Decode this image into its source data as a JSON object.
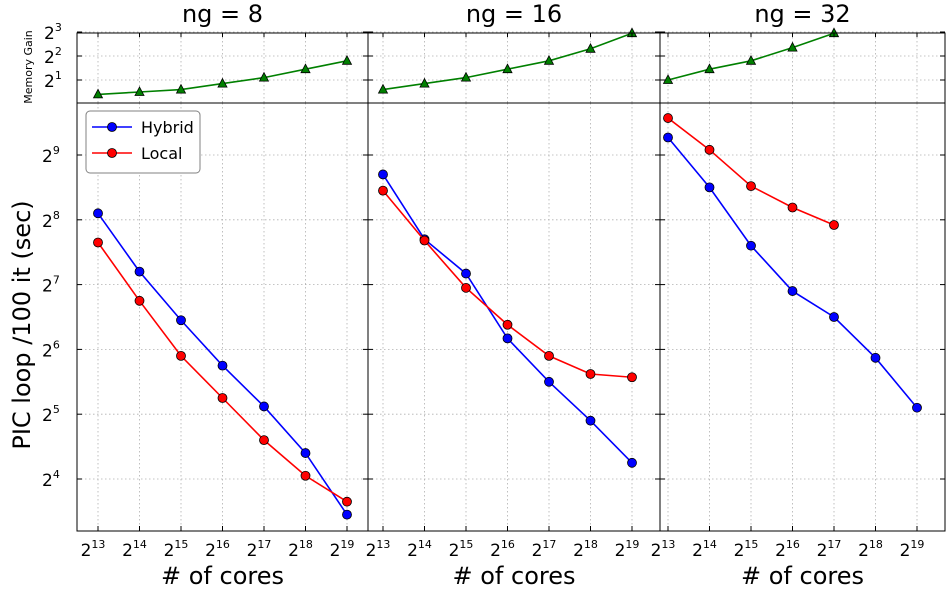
{
  "chart_data": {
    "type": "line",
    "top_ylabel": "Memory Gain",
    "bottom_ylabel": "PIC loop /100 it (sec)",
    "xlabel": "# of cores",
    "x": [
      13,
      14,
      15,
      16,
      17,
      18,
      19
    ],
    "x_tick_labels": [
      "13",
      "14",
      "15",
      "16",
      "17",
      "18",
      "19"
    ],
    "x_tick_base": "2",
    "top_y_ticks": [
      "1",
      "2",
      "3"
    ],
    "bottom_y_ticks": [
      "4",
      "5",
      "6",
      "7",
      "8",
      "9"
    ],
    "log_scale": "base 2 (values given as exponents)",
    "grid": true,
    "legend_position": "upper-left of first panel",
    "legend": [
      {
        "name": "Hybrid",
        "color": "#0000ff"
      },
      {
        "name": "Local",
        "color": "#ff0000"
      }
    ],
    "memory_gain_color": "#008000",
    "panels": [
      {
        "title": "ng = 8",
        "memory_gain": [
          0.4,
          0.5,
          0.6,
          0.85,
          1.1,
          1.45,
          1.8
        ],
        "series": [
          {
            "name": "Hybrid",
            "values": [
              8.1,
              7.2,
              6.45,
              5.75,
              5.12,
              4.4,
              3.45
            ]
          },
          {
            "name": "Local",
            "values": [
              7.65,
              6.75,
              5.9,
              5.25,
              4.6,
              4.05,
              3.65
            ]
          }
        ]
      },
      {
        "title": "ng = 16",
        "memory_gain": [
          0.6,
          0.85,
          1.1,
          1.45,
          1.8,
          2.3,
          2.95
        ],
        "series": [
          {
            "name": "Hybrid",
            "values": [
              8.7,
              7.7,
              7.17,
              6.17,
              5.5,
              4.9,
              4.25
            ]
          },
          {
            "name": "Local",
            "values": [
              8.45,
              7.68,
              6.95,
              6.38,
              5.9,
              5.62,
              5.57
            ]
          }
        ]
      },
      {
        "title": "ng = 32",
        "memory_gain": [
          1.0,
          1.45,
          1.8,
          2.35,
          2.95
        ],
        "series": [
          {
            "name": "Hybrid",
            "values": [
              9.27,
              8.5,
              7.6,
              6.9,
              6.5,
              5.87,
              5.1
            ]
          },
          {
            "name": "Local",
            "values": [
              9.57,
              9.08,
              8.52,
              8.19,
              7.92
            ]
          }
        ]
      }
    ]
  }
}
